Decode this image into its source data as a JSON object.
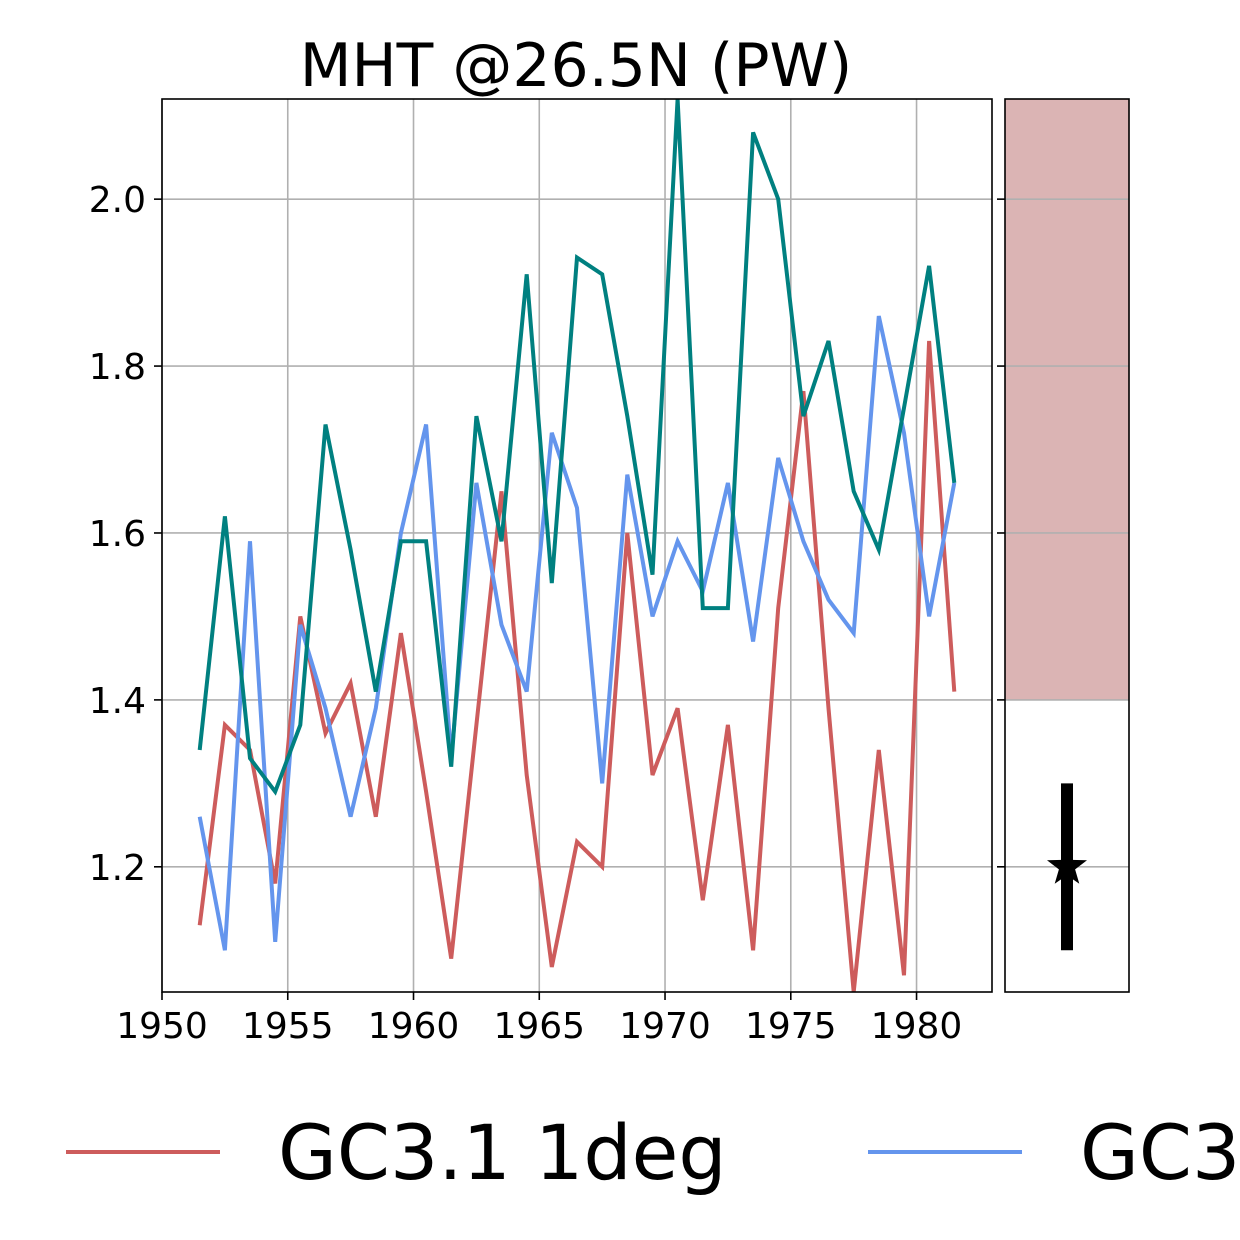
{
  "chart_data": {
    "type": "line",
    "title": "MHT @26.5N (PW)",
    "xlabel": "",
    "ylabel": "",
    "xlim": [
      1950,
      1983
    ],
    "ylim": [
      1.05,
      2.12
    ],
    "x_ticks": [
      1950,
      1955,
      1960,
      1965,
      1970,
      1975,
      1980
    ],
    "y_ticks": [
      1.2,
      1.4,
      1.6,
      1.8,
      2.0
    ],
    "y_tick_labels": [
      "1.2",
      "1.4",
      "1.6",
      "1.8",
      "2.0"
    ],
    "grid": true,
    "x": [
      1951.5,
      1952.5,
      1953.5,
      1954.5,
      1955.5,
      1956.5,
      1957.5,
      1958.5,
      1959.5,
      1960.5,
      1961.5,
      1962.5,
      1963.5,
      1964.5,
      1965.5,
      1966.5,
      1967.5,
      1968.5,
      1969.5,
      1970.5,
      1971.5,
      1972.5,
      1973.5,
      1974.5,
      1975.5,
      1976.5,
      1977.5,
      1978.5,
      1979.5,
      1980.5,
      1981.5
    ],
    "series": [
      {
        "name": "GC3.1 1deg",
        "color": "#cd5c5c",
        "values": [
          1.13,
          1.37,
          1.34,
          1.18,
          1.5,
          1.36,
          1.42,
          1.26,
          1.48,
          1.29,
          1.09,
          1.37,
          1.65,
          1.31,
          1.08,
          1.23,
          1.2,
          1.6,
          1.31,
          1.39,
          1.16,
          1.37,
          1.1,
          1.51,
          1.77,
          1.39,
          1.05,
          1.34,
          1.07,
          1.83,
          1.41
        ]
      },
      {
        "name": "GC3",
        "color": "#6495ed",
        "values": [
          1.26,
          1.1,
          1.59,
          1.11,
          1.49,
          1.39,
          1.26,
          1.39,
          1.6,
          1.73,
          1.33,
          1.66,
          1.49,
          1.41,
          1.72,
          1.63,
          1.3,
          1.67,
          1.5,
          1.59,
          1.53,
          1.66,
          1.47,
          1.69,
          1.59,
          1.52,
          1.48,
          1.86,
          1.72,
          1.5,
          1.66
        ]
      },
      {
        "color": "#008080",
        "values": [
          1.34,
          1.62,
          1.33,
          1.29,
          1.37,
          1.73,
          1.58,
          1.41,
          1.59,
          1.59,
          1.32,
          1.74,
          1.59,
          1.91,
          1.54,
          1.93,
          1.91,
          1.74,
          1.55,
          2.12,
          1.51,
          1.51,
          2.08,
          2.0,
          1.74,
          1.83,
          1.65,
          1.58,
          1.75,
          1.92,
          1.66
        ]
      }
    ],
    "side_panel": {
      "ylim": [
        1.05,
        2.12
      ],
      "shaded_range": [
        1.4,
        2.12
      ],
      "shade_color": "#dbb4b4",
      "marker_value": 1.2,
      "errorbar": [
        1.1,
        1.3
      ],
      "marker": "star"
    },
    "legend": {
      "placement": "bottom",
      "entries": [
        "GC3.1 1deg",
        "GC3"
      ]
    }
  }
}
